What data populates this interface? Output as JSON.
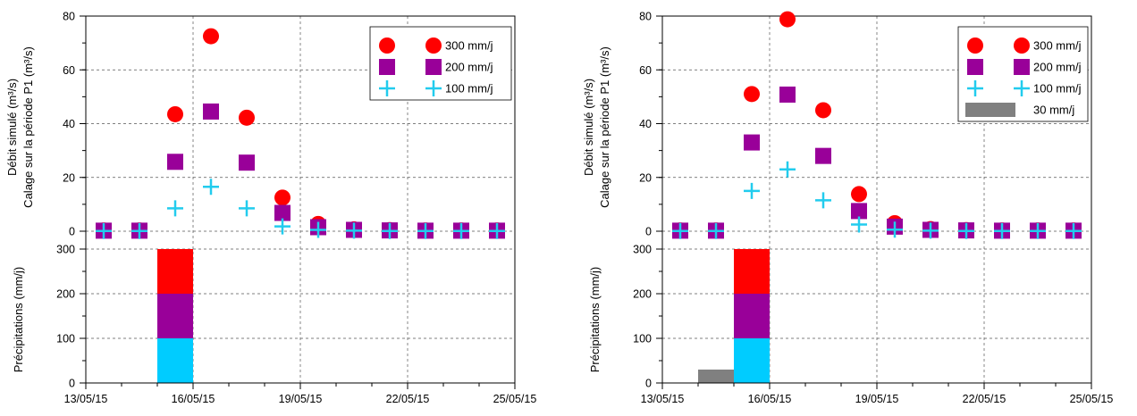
{
  "chart_data": [
    {
      "type": "scatter",
      "title": "",
      "x_axis": {
        "label": "",
        "ticks": [
          "13/05/15",
          "16/05/15",
          "19/05/15",
          "22/05/15",
          "25/05/15"
        ],
        "range": [
          "13/05/15",
          "25/05/15"
        ],
        "dates": [
          "14/05/15",
          "15/05/15",
          "16/05/15",
          "17/05/15",
          "18/05/15",
          "19/05/15",
          "20/05/15",
          "21/05/15",
          "22/05/15",
          "23/05/15",
          "24/05/15",
          "25/05/15"
        ]
      },
      "top_panel": {
        "ylabel_line1": "Débit simulé (m³/s)",
        "ylabel_line2": "Calage sur la période P1 (m³/s)",
        "ylim": [
          0,
          80
        ],
        "yticks": [
          "0",
          "20",
          "40",
          "60",
          "80"
        ],
        "series": [
          {
            "name": "300 mm/j",
            "marker": "circle",
            "color": "#ff0000",
            "values": [
              0.3,
              0.3,
              43.5,
              72.5,
              42.2,
              12.5,
              2.7,
              0.7,
              0.4,
              0.3,
              0.3,
              0.3
            ]
          },
          {
            "name": "200 mm/j",
            "marker": "square",
            "color": "#990099",
            "values": [
              0.2,
              0.2,
              25.8,
              44.5,
              25.5,
              6.8,
              1.5,
              0.5,
              0.3,
              0.2,
              0.2,
              0.2
            ]
          },
          {
            "name": "100 mm/j",
            "marker": "plus",
            "color": "#22ccee",
            "values": [
              0.1,
              0.1,
              8.5,
              16.5,
              8.5,
              1.8,
              0.5,
              0.2,
              0.1,
              0.1,
              0.1,
              0.1
            ]
          }
        ]
      },
      "bottom_panel": {
        "ylabel": "Précipitations (mm/j)",
        "ylim": [
          0,
          300
        ],
        "yticks": [
          "0",
          "100",
          "200",
          "300"
        ],
        "bars": [
          {
            "date": "15/05/15",
            "bottom": 200,
            "top": 300,
            "color": "#ff0000"
          },
          {
            "date": "15/05/15",
            "bottom": 100,
            "top": 200,
            "color": "#990099"
          },
          {
            "date": "15/05/15",
            "bottom": 0,
            "top": 100,
            "color": "#00ccff"
          }
        ]
      },
      "legend": {
        "placement": "top-right",
        "entries": [
          {
            "label": "300 mm/j",
            "marker": "circle",
            "color": "#ff0000"
          },
          {
            "label": "200 mm/j",
            "marker": "square",
            "color": "#990099"
          },
          {
            "label": "100 mm/j",
            "marker": "plus",
            "color": "#22ccee"
          }
        ]
      },
      "grid": true
    },
    {
      "type": "scatter",
      "title": "",
      "x_axis": {
        "label": "",
        "ticks": [
          "13/05/15",
          "16/05/15",
          "19/05/15",
          "22/05/15",
          "25/05/15"
        ],
        "range": [
          "13/05/15",
          "25/05/15"
        ],
        "dates": [
          "14/05/15",
          "15/05/15",
          "16/05/15",
          "17/05/15",
          "18/05/15",
          "19/05/15",
          "20/05/15",
          "21/05/15",
          "22/05/15",
          "23/05/15",
          "24/05/15",
          "25/05/15"
        ]
      },
      "top_panel": {
        "ylabel_line1": "Débit simulé (m³/s)",
        "ylabel_line2": "Calage sur la période P1 (m³/s)",
        "ylim": [
          0,
          80
        ],
        "yticks": [
          "0",
          "20",
          "40",
          "60",
          "80"
        ],
        "series": [
          {
            "name": "300 mm/j",
            "marker": "circle",
            "color": "#ff0000",
            "values": [
              0.3,
              0.3,
              51.0,
              78.8,
              45.0,
              13.8,
              3.0,
              0.8,
              0.4,
              0.3,
              0.3,
              0.3
            ]
          },
          {
            "name": "200 mm/j",
            "marker": "square",
            "color": "#990099",
            "values": [
              0.2,
              0.2,
              33.0,
              50.8,
              28.0,
              7.5,
              1.7,
              0.5,
              0.3,
              0.2,
              0.2,
              0.2
            ]
          },
          {
            "name": "100 mm/j",
            "marker": "plus",
            "color": "#22ccee",
            "values": [
              0.1,
              0.1,
              15.0,
              23.0,
              11.5,
              2.5,
              0.6,
              0.2,
              0.1,
              0.1,
              0.1,
              0.1
            ]
          }
        ]
      },
      "bottom_panel": {
        "ylabel": "Précipitations (mm/j)",
        "ylim": [
          0,
          300
        ],
        "yticks": [
          "0",
          "100",
          "200",
          "300"
        ],
        "bars": [
          {
            "date": "14/05/15",
            "bottom": 0,
            "top": 30,
            "color": "#808080"
          },
          {
            "date": "15/05/15",
            "bottom": 200,
            "top": 300,
            "color": "#ff0000"
          },
          {
            "date": "15/05/15",
            "bottom": 100,
            "top": 200,
            "color": "#990099"
          },
          {
            "date": "15/05/15",
            "bottom": 0,
            "top": 100,
            "color": "#00ccff"
          }
        ]
      },
      "legend": {
        "placement": "top-right",
        "entries": [
          {
            "label": "300 mm/j",
            "marker": "circle",
            "color": "#ff0000"
          },
          {
            "label": "200 mm/j",
            "marker": "square",
            "color": "#990099"
          },
          {
            "label": "100 mm/j",
            "marker": "plus",
            "color": "#22ccee"
          },
          {
            "label": "30 mm/j",
            "marker": "bar",
            "color": "#808080"
          }
        ]
      },
      "grid": true
    }
  ]
}
